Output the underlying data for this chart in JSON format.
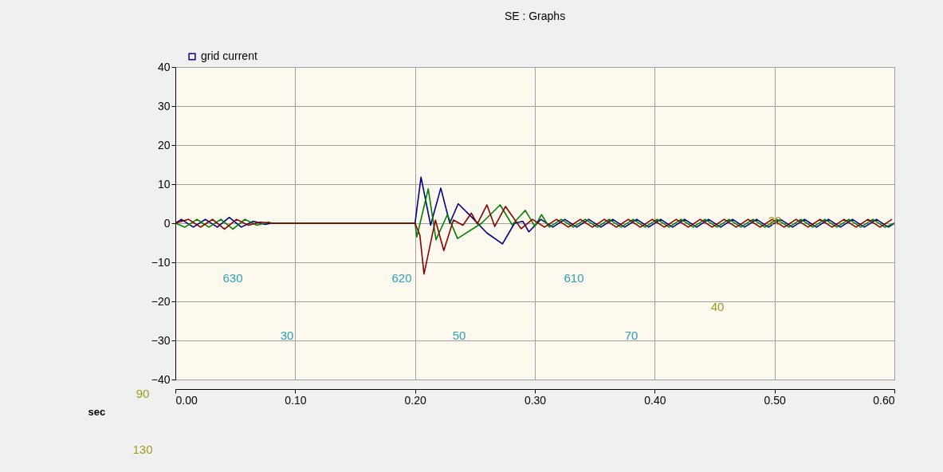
{
  "chart_data": {
    "type": "line",
    "title": "SE : Graphs",
    "xlabel": "sec",
    "legend": "top left",
    "grid": true,
    "xlim": [
      0,
      0.6
    ],
    "xticks": [
      {
        "value": 0,
        "label": "0.00"
      },
      {
        "value": 0.1,
        "label": "0.10"
      },
      {
        "value": 0.2,
        "label": "0.20"
      },
      {
        "value": 0.3,
        "label": "0.30"
      },
      {
        "value": 0.4,
        "label": "0.40"
      },
      {
        "value": 0.5,
        "label": "0.50"
      },
      {
        "value": 0.6,
        "label": "0.60"
      }
    ],
    "ylim": [
      -40,
      40
    ],
    "yticks": [
      -40,
      -30,
      -20,
      -10,
      0,
      10,
      20,
      30,
      40
    ],
    "annotations": [
      "630",
      "620",
      "610",
      "30",
      "50",
      "70",
      "40",
      "20",
      "90",
      "130"
    ],
    "series": [
      {
        "name": "grid current",
        "color": "#00008b",
        "x": [
          0,
          0.005,
          0.015,
          0.025,
          0.035,
          0.045,
          0.055,
          0.065,
          0.075,
          0.08,
          0.2,
          0.205,
          0.213,
          0.2215,
          0.229,
          0.236,
          0.2475,
          0.26,
          0.273,
          0.283,
          0.29,
          0.295,
          0.305,
          0.315,
          0.325,
          0.335,
          0.345,
          0.355,
          0.365,
          0.375,
          0.385,
          0.395,
          0.405,
          0.415,
          0.425,
          0.435,
          0.445,
          0.455,
          0.465,
          0.475,
          0.485,
          0.495,
          0.505,
          0.515,
          0.525,
          0.535,
          0.545,
          0.555,
          0.565,
          0.575,
          0.585,
          0.595,
          0.6
        ],
        "values": [
          0,
          1,
          -1,
          1,
          -1,
          1.5,
          -1,
          0.5,
          -0.3,
          0,
          0,
          11.8,
          -0.5,
          9,
          0,
          5,
          1.5,
          -2.5,
          -5.3,
          0,
          0.5,
          -2.2,
          1,
          -1,
          1,
          -1,
          1,
          -1,
          1,
          -1,
          1,
          -1,
          1,
          -1,
          1,
          -1,
          1,
          -1,
          1,
          -1,
          1,
          -1,
          1,
          -1,
          1,
          -1,
          1,
          -1,
          1,
          -1,
          1,
          -1,
          0
        ]
      },
      {
        "color": "#008000",
        "x": [
          0,
          0.008,
          0.018,
          0.028,
          0.038,
          0.048,
          0.058,
          0.068,
          0.078,
          0.08,
          0.2,
          0.2015,
          0.211,
          0.2175,
          0.227,
          0.2355,
          0.2555,
          0.271,
          0.281,
          0.292,
          0.3,
          0.3055,
          0.312,
          0.322,
          0.332,
          0.342,
          0.352,
          0.362,
          0.372,
          0.382,
          0.392,
          0.402,
          0.412,
          0.422,
          0.432,
          0.442,
          0.452,
          0.462,
          0.472,
          0.482,
          0.492,
          0.502,
          0.512,
          0.522,
          0.532,
          0.542,
          0.552,
          0.562,
          0.572,
          0.582,
          0.592,
          0.6
        ],
        "values": [
          0,
          -1,
          1,
          -1,
          1,
          -1.5,
          1,
          -0.5,
          0.3,
          0,
          0,
          -3.5,
          8.8,
          -4.2,
          2.2,
          -3.9,
          0,
          4.7,
          -0.4,
          3.3,
          -0.8,
          2.2,
          -1,
          1,
          -1,
          1,
          -1,
          1,
          -1,
          1,
          -1,
          1,
          -1,
          1,
          -1,
          1,
          -1,
          1,
          -1,
          1,
          -1,
          1,
          -1,
          1,
          -1,
          1,
          -1,
          1,
          -1,
          1,
          -1,
          0
        ]
      },
      {
        "color": "#8b0000",
        "x": [
          0,
          0.011,
          0.021,
          0.031,
          0.041,
          0.051,
          0.061,
          0.071,
          0.08,
          0.2,
          0.204,
          0.2075,
          0.217,
          0.224,
          0.232,
          0.24,
          0.247,
          0.252,
          0.26,
          0.2665,
          0.2755,
          0.2885,
          0.298,
          0.308,
          0.318,
          0.328,
          0.338,
          0.348,
          0.358,
          0.368,
          0.378,
          0.388,
          0.398,
          0.408,
          0.418,
          0.428,
          0.438,
          0.448,
          0.458,
          0.468,
          0.478,
          0.488,
          0.498,
          0.508,
          0.518,
          0.528,
          0.538,
          0.548,
          0.558,
          0.568,
          0.578,
          0.588,
          0.598
        ],
        "values": [
          0,
          1,
          -1,
          1,
          -1.5,
          1,
          -0.5,
          0.3,
          0,
          0,
          -3,
          -13,
          0.8,
          -7,
          0.8,
          -0.5,
          2.6,
          -0.2,
          4.7,
          -0.8,
          4.3,
          -1.4,
          1,
          -1,
          1,
          -1,
          1,
          -1,
          1,
          -1,
          1,
          -1,
          1,
          -1,
          1,
          -1,
          1,
          -1,
          1,
          -1,
          1,
          -1,
          1,
          -1,
          1,
          -1,
          1,
          -1,
          1,
          -1,
          1,
          -1,
          1
        ]
      }
    ]
  }
}
